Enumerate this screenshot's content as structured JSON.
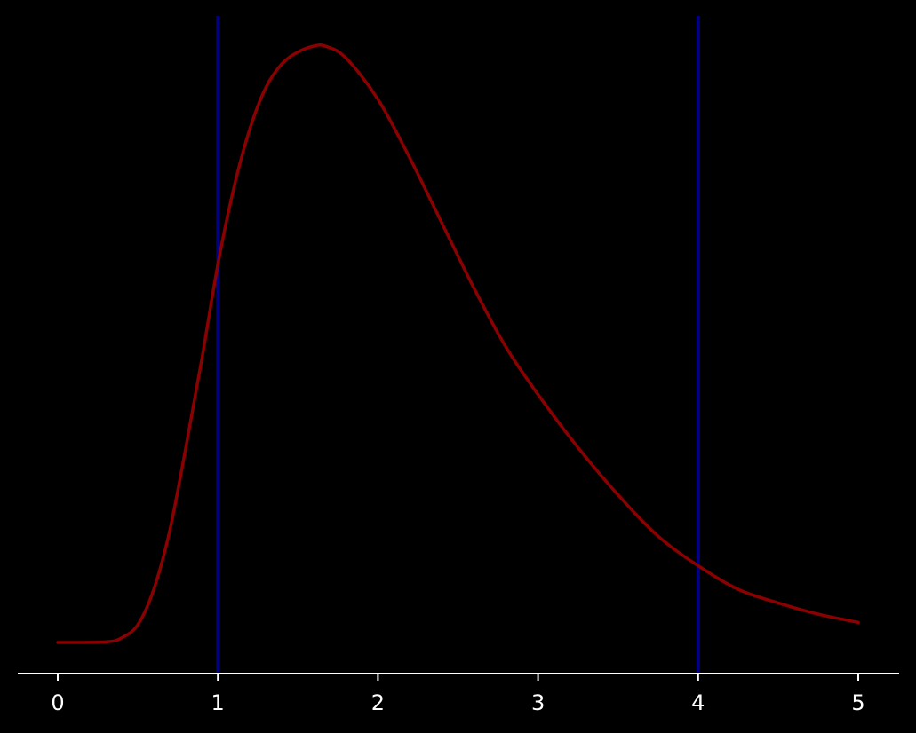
{
  "colors": {
    "background": "#000000",
    "axis": "#ffffff",
    "curve": "#8b0000",
    "vline": "#000080",
    "tick_label": "#ffffff"
  },
  "chart_data": {
    "type": "line",
    "title": "",
    "xlabel": "",
    "ylabel": "",
    "xlim": [
      -0.25,
      5.25
    ],
    "ylim": [
      -0.05,
      1.05
    ],
    "grid": false,
    "x_ticks": [
      "0",
      "1",
      "2",
      "3",
      "4",
      "5"
    ],
    "x_tick_values": [
      0,
      1,
      2,
      3,
      4,
      5
    ],
    "y_axis_visible": false,
    "vertical_lines": [
      {
        "x": 1
      },
      {
        "x": 4
      }
    ],
    "series": [
      {
        "x": [
          0,
          0.3,
          0.4,
          0.5,
          0.6,
          0.7,
          0.8,
          0.9,
          1.0,
          1.1,
          1.2,
          1.3,
          1.4,
          1.5,
          1.6,
          1.67,
          1.8,
          2.0,
          2.2,
          2.4,
          2.6,
          2.8,
          3.0,
          3.25,
          3.5,
          3.75,
          4.0,
          4.25,
          4.5,
          4.75,
          5.0
        ],
        "y": [
          0.0,
          0.001,
          0.008,
          0.03,
          0.09,
          0.19,
          0.33,
          0.48,
          0.64,
          0.77,
          0.87,
          0.94,
          0.98,
          1.0,
          1.01,
          1.01,
          0.99,
          0.92,
          0.82,
          0.71,
          0.6,
          0.5,
          0.42,
          0.33,
          0.25,
          0.18,
          0.13,
          0.09,
          0.067,
          0.048,
          0.034
        ]
      }
    ]
  }
}
